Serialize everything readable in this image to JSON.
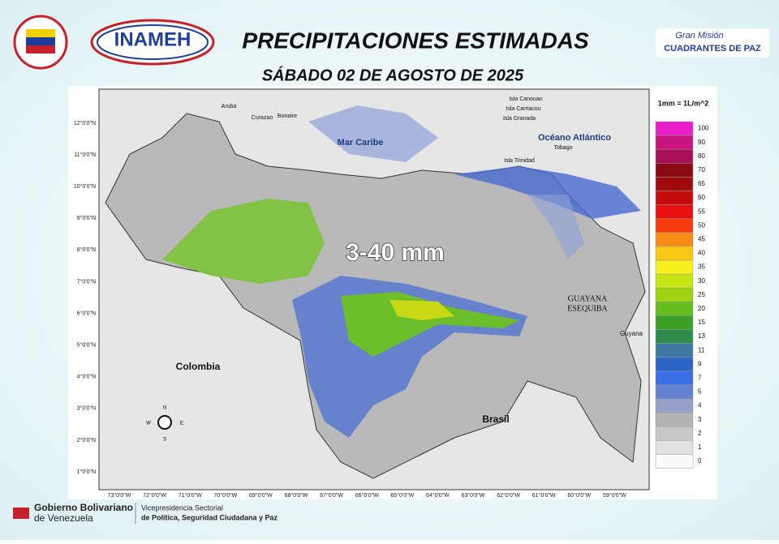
{
  "header": {
    "title": "PRECIPITACIONES ESTIMADAS",
    "subtitle": "SÁBADO 02 DE AGOSTO DE 2025",
    "left_logo": "INAMEH",
    "right_logo": [
      "Gran Misión",
      "CUADRANTES DE PAZ"
    ]
  },
  "map": {
    "estimate": "3-40 mm",
    "labels": [
      "Mar Caribe",
      "Océano Atlántico",
      "Colombia",
      "Brasil",
      "Guyana",
      "Aruba",
      "Curazao",
      "Bonaire",
      "Isla Canouan",
      "Isla Carriacou",
      "Isla Granada",
      "Isla Trinidad",
      "Tobago"
    ],
    "esequibo": [
      "GUAYANA",
      "ESEQUIBA"
    ],
    "compass": [
      "N",
      "E",
      "S",
      "W"
    ],
    "lat_labels": [
      "12°0'0\"N",
      "11°0'0\"N",
      "10°0'0\"N",
      "9°0'0\"N",
      "8°0'0\"N",
      "7°0'0\"N",
      "6°0'0\"N",
      "5°0'0\"N",
      "4°0'0\"N",
      "3°0'0\"N",
      "2°0'0\"N",
      "1°0'0\"N"
    ],
    "lon_labels": [
      "73°0'0\"W",
      "72°0'0\"W",
      "71°0'0\"W",
      "70°0'0\"W",
      "69°0'0\"W",
      "68°0'0\"W",
      "67°0'0\"W",
      "66°0'0\"W",
      "65°0'0\"W",
      "64°0'0\"W",
      "63°0'0\"W",
      "62°0'0\"W",
      "61°0'0\"W",
      "60°0'0\"W",
      "59°0'0\"W"
    ]
  },
  "legend": {
    "unit": "1mm = 1L/m^2",
    "values": [
      "100",
      "90",
      "80",
      "70",
      "65",
      "60",
      "55",
      "50",
      "45",
      "40",
      "35",
      "30",
      "25",
      "20",
      "15",
      "13",
      "11",
      "9",
      "7",
      "5",
      "4",
      "3",
      "2",
      "1",
      "0"
    ],
    "colors": [
      "#e81ec8",
      "#c8147f",
      "#a80f5a",
      "#8a0a14",
      "#a00a0a",
      "#c40c0c",
      "#e81010",
      "#f83c10",
      "#f88c14",
      "#f8c814",
      "#f8f01c",
      "#c8e614",
      "#a0d214",
      "#64be1e",
      "#3ca028",
      "#2d8c4b",
      "#3c78a0",
      "#2d64c8",
      "#3c6ee6",
      "#6482d2",
      "#96a0c8",
      "#b4b4b4",
      "#c8c8c8",
      "#e1e1e1",
      "#fafafa"
    ]
  },
  "footer": {
    "gov": [
      "Gobierno Bolivariano",
      "de Venezuela"
    ],
    "ministry": [
      "Vicepresidencia Sectorial",
      "de Política, Seguridad Ciudadana y Paz"
    ]
  }
}
